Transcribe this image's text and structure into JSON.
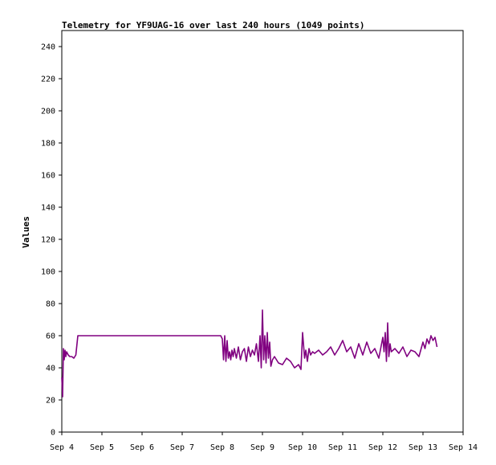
{
  "chart_data": {
    "type": "line",
    "title": "Telemetry for YF9UAG-16 over last 240 hours (1049 points)",
    "xlabel": "",
    "ylabel": "Values",
    "ylim": [
      0,
      250
    ],
    "xlim": [
      0,
      10
    ],
    "x_ticks": [
      {
        "value": 0,
        "label": "Sep 4"
      },
      {
        "value": 1,
        "label": "Sep 5"
      },
      {
        "value": 2,
        "label": "Sep 6"
      },
      {
        "value": 3,
        "label": "Sep 7"
      },
      {
        "value": 4,
        "label": "Sep 8"
      },
      {
        "value": 5,
        "label": "Sep 9"
      },
      {
        "value": 6,
        "label": "Sep 10"
      },
      {
        "value": 7,
        "label": "Sep 11"
      },
      {
        "value": 8,
        "label": "Sep 12"
      },
      {
        "value": 9,
        "label": "Sep 13"
      },
      {
        "value": 10,
        "label": "Sep 14"
      }
    ],
    "y_ticks": [
      0,
      20,
      40,
      60,
      80,
      100,
      120,
      140,
      160,
      180,
      200,
      220,
      240
    ],
    "grid": false,
    "series": [
      {
        "color": "#800080",
        "x": [
          0.0,
          0.02,
          0.04,
          0.06,
          0.08,
          0.1,
          0.12,
          0.14,
          0.16,
          0.2,
          0.25,
          0.3,
          0.35,
          0.4,
          0.42,
          1.0,
          2.0,
          3.0,
          3.96,
          4.0,
          4.03,
          4.06,
          4.09,
          4.12,
          4.15,
          4.18,
          4.21,
          4.24,
          4.27,
          4.3,
          4.35,
          4.4,
          4.45,
          4.5,
          4.55,
          4.6,
          4.65,
          4.7,
          4.75,
          4.8,
          4.85,
          4.9,
          4.94,
          4.97,
          5.0,
          5.03,
          5.06,
          5.09,
          5.12,
          5.15,
          5.18,
          5.21,
          5.25,
          5.3,
          5.4,
          5.5,
          5.6,
          5.7,
          5.8,
          5.9,
          5.96,
          6.0,
          6.05,
          6.08,
          6.12,
          6.16,
          6.2,
          6.25,
          6.3,
          6.4,
          6.5,
          6.6,
          6.7,
          6.8,
          6.9,
          7.0,
          7.1,
          7.2,
          7.3,
          7.4,
          7.5,
          7.6,
          7.7,
          7.8,
          7.9,
          8.0,
          8.03,
          8.06,
          8.09,
          8.12,
          8.15,
          8.18,
          8.21,
          8.3,
          8.4,
          8.5,
          8.6,
          8.7,
          8.8,
          8.9,
          9.0,
          9.05,
          9.1,
          9.15,
          9.2,
          9.25,
          9.3,
          9.35
        ],
        "y": [
          34,
          22,
          52,
          45,
          51,
          47,
          50,
          49,
          48,
          47,
          47,
          46,
          48,
          60,
          60,
          60,
          60,
          60,
          60,
          58,
          45,
          60,
          44,
          57,
          46,
          50,
          45,
          51,
          47,
          52,
          46,
          53,
          45,
          50,
          52,
          44,
          53,
          47,
          51,
          48,
          55,
          44,
          60,
          40,
          76,
          45,
          60,
          43,
          62,
          46,
          56,
          41,
          45,
          47,
          43,
          42,
          46,
          44,
          40,
          42,
          39,
          62,
          46,
          51,
          44,
          52,
          48,
          50,
          49,
          51,
          48,
          50,
          53,
          48,
          52,
          57,
          50,
          53,
          46,
          55,
          48,
          56,
          49,
          52,
          46,
          59,
          50,
          62,
          44,
          68,
          47,
          55,
          50,
          52,
          49,
          53,
          47,
          51,
          50,
          47,
          56,
          52,
          58,
          55,
          60,
          57,
          59,
          53
        ]
      }
    ]
  }
}
